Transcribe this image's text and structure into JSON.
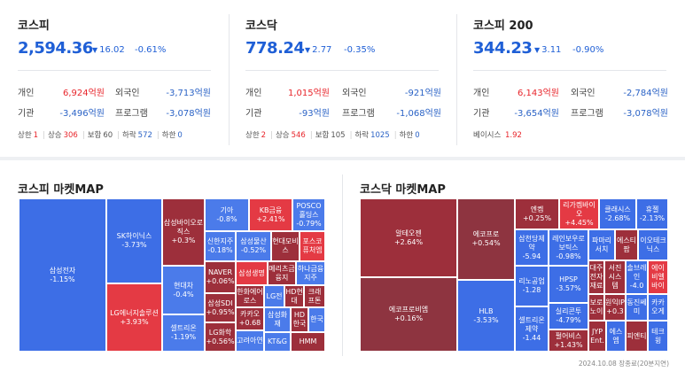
{
  "indices": [
    {
      "name": "코스피",
      "value": "2,594.36",
      "change": "16.02",
      "pct": "-0.61%",
      "rows": [
        {
          "l1": "개인",
          "v1": "6,924억원",
          "l2": "외국인",
          "v2": "-3,713억원"
        },
        {
          "l1": "기관",
          "v1": "-3,496억원",
          "l2": "프로그램",
          "v2": "-3,078억원"
        }
      ],
      "breadth": {
        "upper_label": "상한",
        "upper": "1",
        "up_label": "상승",
        "up": "306",
        "flat_label": "보합",
        "flat": "60",
        "down_label": "하락",
        "down": "572",
        "lower_label": "하한",
        "lower": "0"
      }
    },
    {
      "name": "코스닥",
      "value": "778.24",
      "change": "2.77",
      "pct": "-0.35%",
      "rows": [
        {
          "l1": "개인",
          "v1": "1,015억원",
          "l2": "외국인",
          "v2": "-921억원"
        },
        {
          "l1": "기관",
          "v1": "-93억원",
          "l2": "프로그램",
          "v2": "-1,068억원"
        }
      ],
      "breadth": {
        "upper_label": "상한",
        "upper": "2",
        "up_label": "상승",
        "up": "546",
        "flat_label": "보합",
        "flat": "105",
        "down_label": "하락",
        "down": "1025",
        "lower_label": "하한",
        "lower": "0"
      }
    },
    {
      "name": "코스피 200",
      "value": "344.23",
      "change": "3.11",
      "pct": "-0.90%",
      "rows": [
        {
          "l1": "개인",
          "v1": "6,143억원",
          "l2": "외국인",
          "v2": "-2,784억원"
        },
        {
          "l1": "기관",
          "v1": "-3,654억원",
          "l2": "프로그램",
          "v2": "-3,078억원"
        }
      ],
      "basis": {
        "label": "베이시스",
        "value": "1.92"
      }
    }
  ],
  "kospi_map": {
    "title": "코스피 마켓MAP",
    "tiles": [
      {
        "n": "삼성전자",
        "p": "-1.15%"
      },
      {
        "n": "SK하이닉스",
        "p": "-3.73%"
      },
      {
        "n": "LG에너지솔루션",
        "p": "+3.93%"
      },
      {
        "n": "삼성바이오로직스",
        "p": "+0.3%"
      },
      {
        "n": "현대차",
        "p": "-0.4%"
      },
      {
        "n": "셀트리온",
        "p": "-1.19%"
      },
      {
        "n": "기아",
        "p": "-0.8%"
      },
      {
        "n": "KB금융",
        "p": "+2.41%"
      },
      {
        "n": "POSCO홀딩스",
        "p": "-0.79%"
      },
      {
        "n": "신한지주",
        "p": "-0.18%"
      },
      {
        "n": "삼성물산",
        "p": "-0.52%"
      },
      {
        "n": "현대모비스",
        "p": ""
      },
      {
        "n": "포스코퓨처엠",
        "p": ""
      },
      {
        "n": "NAVER",
        "p": "+0.06%"
      },
      {
        "n": "삼성생명",
        "p": ""
      },
      {
        "n": "메리츠금융지",
        "p": ""
      },
      {
        "n": "하나금융지주",
        "p": ""
      },
      {
        "n": "삼성SDI",
        "p": "+0.95%"
      },
      {
        "n": "한화에어로스",
        "p": ""
      },
      {
        "n": "LG전",
        "p": ""
      },
      {
        "n": "HD현대",
        "p": ""
      },
      {
        "n": "크래프톤",
        "p": ""
      },
      {
        "n": "LG화학",
        "p": "+0.56%"
      },
      {
        "n": "카카오",
        "p": "+0.68"
      },
      {
        "n": "고려아연",
        "p": ""
      },
      {
        "n": "삼성화재",
        "p": ""
      },
      {
        "n": "HD한국",
        "p": ""
      },
      {
        "n": "한국",
        "p": ""
      },
      {
        "n": "KT&G",
        "p": ""
      },
      {
        "n": "HMM",
        "p": ""
      }
    ]
  },
  "kosdaq_map": {
    "title": "코스닥 마켓MAP",
    "tiles": [
      {
        "n": "알테오젠",
        "p": "+2.64%"
      },
      {
        "n": "에코프로비엠",
        "p": "+0.16%"
      },
      {
        "n": "에코프로",
        "p": "+0.54%"
      },
      {
        "n": "HLB",
        "p": "-3.53%"
      },
      {
        "n": "엔켐",
        "p": "+0.25%"
      },
      {
        "n": "삼천당제약",
        "p": "-5.94"
      },
      {
        "n": "리노공업",
        "p": "-1.28"
      },
      {
        "n": "셀트리온제약",
        "p": "-1.44"
      },
      {
        "n": "리가켐바이오",
        "p": "+4.45%"
      },
      {
        "n": "레인보우로보틱스",
        "p": "-0.98%"
      },
      {
        "n": "HPSP",
        "p": "-3.57%"
      },
      {
        "n": "실리콘투",
        "p": "-4.79%"
      },
      {
        "n": "펄어비스",
        "p": "+1.43%"
      },
      {
        "n": "클래시스",
        "p": "-2.68%"
      },
      {
        "n": "휴젤",
        "p": "-2.13%"
      },
      {
        "n": "파마리서치",
        "p": ""
      },
      {
        "n": "에스티팜",
        "p": ""
      },
      {
        "n": "이오테크닉스",
        "p": ""
      },
      {
        "n": "서진시스템",
        "p": ""
      },
      {
        "n": "솔브레인",
        "p": "-4.0"
      },
      {
        "n": "에이비엘바이",
        "p": ""
      },
      {
        "n": "대주전자재료",
        "p": ""
      },
      {
        "n": "원익IP",
        "p": "+0.3"
      },
      {
        "n": "동진쎄미",
        "p": ""
      },
      {
        "n": "보로노이",
        "p": ""
      },
      {
        "n": "카카오게",
        "p": ""
      },
      {
        "n": "JYP Ent.",
        "p": ""
      },
      {
        "n": "에스엠",
        "p": ""
      },
      {
        "n": "피엔티",
        "p": ""
      },
      {
        "n": "테크윙",
        "p": ""
      }
    ]
  },
  "footnote": "2024.10.08 장종료(20분지연)"
}
